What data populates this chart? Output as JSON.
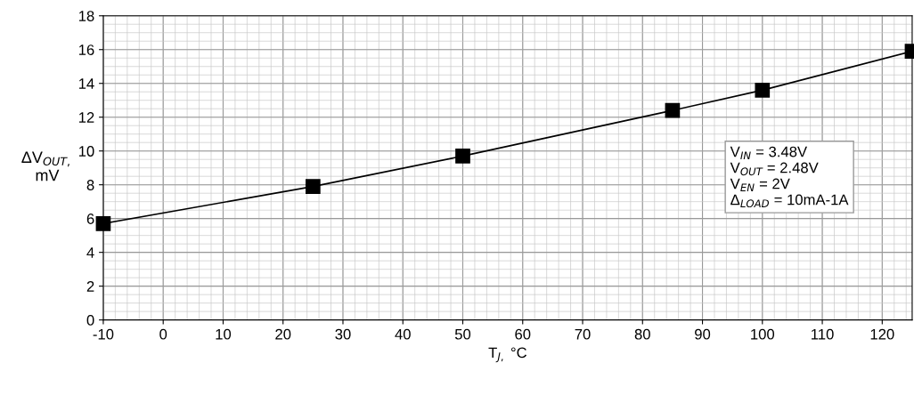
{
  "chart_data": {
    "type": "line",
    "xlabel": "T$_{J,}$ °C",
    "ylabel": "ΔV$_{OUT,}$\nmV",
    "x": [
      -10,
      25,
      50,
      85,
      100,
      125
    ],
    "series": [
      {
        "color": "#000000",
        "values": [
          5.7,
          7.9,
          9.7,
          12.4,
          13.6,
          15.9
        ]
      }
    ],
    "marker": "square",
    "line_style": "solid",
    "xlim": [
      -10,
      125
    ],
    "xticks": [
      -10,
      0,
      10,
      20,
      30,
      40,
      50,
      60,
      70,
      80,
      90,
      100,
      110,
      120
    ],
    "ylim": [
      0,
      18
    ],
    "yticks": [
      0,
      2,
      4,
      6,
      8,
      10,
      12,
      14,
      16,
      18
    ],
    "grid": true,
    "annotations": [
      "V$_{IN}$ = 3.48V\nV$_{OUT}$ = 2.48V\nV$_{EN}$ = 2V\nΔ$_{LOAD}$ = 10mA-1A"
    ]
  }
}
